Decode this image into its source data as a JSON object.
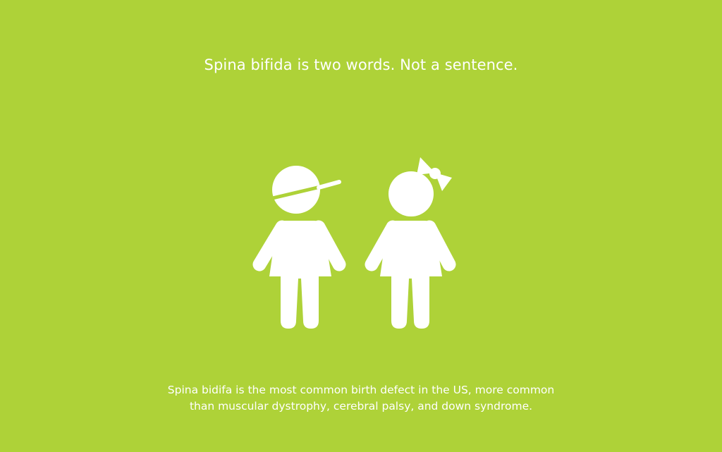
{
  "colors": {
    "background": "#aed238",
    "foreground": "#ffffff"
  },
  "headline": "Spina bifida is two words. Not a sentence.",
  "illustration": {
    "figures": [
      {
        "name": "boy-figure-icon",
        "accessory": "baseball-cap"
      },
      {
        "name": "girl-figure-icon",
        "accessory": "hair-bow"
      }
    ]
  },
  "caption": {
    "line1": "Spina bidifa is the most common birth defect in the US, more common",
    "line2": "than muscular dystrophy, cerebral palsy, and down syndrome."
  }
}
